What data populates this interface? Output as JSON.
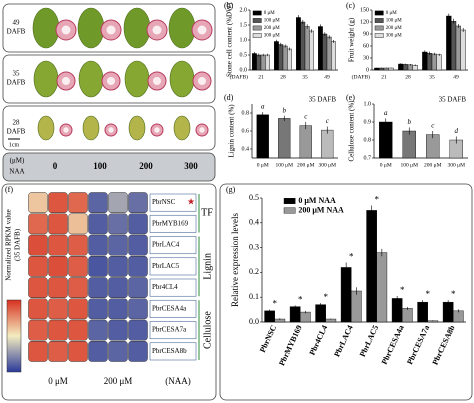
{
  "photo_panel": {
    "label": "(a)",
    "rows": [
      {
        "dafb": "49",
        "unit": "DAFB"
      },
      {
        "dafb": "35",
        "unit": "DAFB"
      },
      {
        "dafb": "28",
        "unit": "DAFB"
      }
    ],
    "scale": "1cm",
    "naa_unit": "(μM)",
    "naa_label": "NAA",
    "concentrations": [
      0,
      100,
      200,
      300
    ]
  },
  "chart_data": [
    {
      "type": "bar",
      "panel_label": "(b)",
      "y_label": "Stone cell content (%DW)",
      "x_label": "(DAFB)",
      "categories": [
        "21",
        "28",
        "35",
        "49"
      ],
      "series": [
        {
          "name": "0 μM",
          "color": "#000000",
          "values": [
            0.55,
            0.95,
            1.75,
            1.45
          ],
          "errors": [
            0.05,
            0.06,
            0.08,
            0.07
          ]
        },
        {
          "name": "100 μM",
          "color": "#555555",
          "values": [
            0.5,
            0.85,
            1.6,
            1.2
          ],
          "errors": [
            0.05,
            0.06,
            0.07,
            0.06
          ]
        },
        {
          "name": "200 μM",
          "color": "#999999",
          "values": [
            0.5,
            0.8,
            1.45,
            1.1
          ],
          "errors": [
            0.04,
            0.05,
            0.07,
            0.06
          ]
        },
        {
          "name": "300 μM",
          "color": "#dddddd",
          "values": [
            0.5,
            0.7,
            1.3,
            0.95
          ],
          "errors": [
            0.04,
            0.05,
            0.06,
            0.05
          ]
        }
      ],
      "ylim": [
        0,
        2
      ],
      "yticks": [
        {
          "value": 0,
          "label": "0.0"
        },
        0.5,
        {
          "value": 1,
          "label": "1.0"
        },
        1.5,
        {
          "value": 2,
          "label": "2.0"
        }
      ],
      "legend": "upper left"
    },
    {
      "type": "bar",
      "panel_label": "(c)",
      "y_label": "Fruit weight (g)",
      "x_label": "(DAFB)",
      "categories": [
        "21",
        "28",
        "35",
        "49"
      ],
      "series": [
        {
          "name": "0 μM",
          "color": "#000000",
          "values": [
            5,
            15,
            45,
            135
          ],
          "errors": [
            1,
            2,
            4,
            6
          ]
        },
        {
          "name": "100 μM",
          "color": "#555555",
          "values": [
            5,
            14,
            42,
            122
          ],
          "errors": [
            1,
            2,
            4,
            6
          ]
        },
        {
          "name": "200 μM",
          "color": "#999999",
          "values": [
            5,
            13,
            40,
            110
          ],
          "errors": [
            1,
            2,
            3,
            5
          ]
        },
        {
          "name": "300 μM",
          "color": "#dddddd",
          "values": [
            5,
            12,
            38,
            100
          ],
          "errors": [
            1,
            2,
            3,
            5
          ]
        }
      ],
      "ylim": [
        0,
        150
      ],
      "yticks": [
        0,
        30,
        60,
        90,
        120,
        150
      ],
      "legend": "upper left"
    },
    {
      "type": "bar",
      "panel_label": "(d)",
      "title": "35 DAFB",
      "y_label": "Lignin content (%)",
      "categories": [
        "0 μM",
        "100 μM",
        "200 μM",
        "300 μM"
      ],
      "values": [
        0.78,
        0.74,
        0.66,
        0.61
      ],
      "errors": [
        0.03,
        0.03,
        0.04,
        0.04
      ],
      "colors": [
        "#000000",
        "#777777",
        "#999999",
        "#bbbbbb"
      ],
      "letters": [
        "a",
        "b",
        "c",
        "c"
      ],
      "ylim": [
        0.3,
        0.9
      ],
      "yticks": [
        0.4,
        0.6,
        0.8
      ]
    },
    {
      "type": "bar",
      "panel_label": "(e)",
      "title": "35 DAFB",
      "y_label": "Cellulose content (%)",
      "categories": [
        "0 μM",
        "100 μM",
        "200 μM",
        "300 μM"
      ],
      "values": [
        0.9,
        0.85,
        0.83,
        0.8
      ],
      "errors": [
        0.02,
        0.02,
        0.02,
        0.02
      ],
      "colors": [
        "#000000",
        "#777777",
        "#999999",
        "#bbbbbb"
      ],
      "letters": [
        "a",
        "b",
        "c",
        "d"
      ],
      "ylim": [
        0.7,
        1
      ],
      "yticks": [
        0.7,
        0.8,
        0.9,
        {
          "value": 1,
          "label": "1.0"
        }
      ]
    },
    {
      "type": "heatmap",
      "panel_label": "(f)",
      "rows": [
        "PbrNSC",
        "PbrMYB169",
        "PbrLAC4",
        "PbrLAC5",
        "Pbr4CL4",
        "PbrCESA4a",
        "PbrCESA7a",
        "PbrCESA8b"
      ],
      "values": [
        [
          0.6,
          0.9,
          0.85,
          0.12,
          0.3,
          0.15
        ],
        [
          0.85,
          0.9,
          0.62,
          0.1,
          0.15,
          0.1
        ],
        [
          0.92,
          0.9,
          0.88,
          0.1,
          0.12,
          0.1
        ],
        [
          0.9,
          0.92,
          0.88,
          0.08,
          0.1,
          0.1
        ],
        [
          0.9,
          0.9,
          0.88,
          0.1,
          0.1,
          0.12
        ],
        [
          0.9,
          0.88,
          0.9,
          0.1,
          0.1,
          0.12
        ],
        [
          0.88,
          0.9,
          0.9,
          0.12,
          0.1,
          0.1
        ],
        [
          0.9,
          0.88,
          0.9,
          0.1,
          0.12,
          0.1
        ]
      ],
      "row_groups": [
        "TF",
        "Lignin",
        "Cellulose"
      ],
      "column_groups": [
        "0 μM",
        "200 μM"
      ],
      "x_label": "(NAA)",
      "colorbar_label": [
        "Normalized RPKM value",
        "(35 DAFB)"
      ],
      "colors": [
        "#2b3a9a",
        "#f3ecc0",
        "#d7301f"
      ]
    },
    {
      "type": "bar",
      "panel_label": "(g)",
      "y_label": "Relative expression levels",
      "categories": [
        "PbrNSC",
        "PbrMYB169",
        "Pbr4CL4",
        "PbrLAC4",
        "PbrLAC5",
        "PbrCESA4a",
        "PbrCESA7a",
        "PbrCESA8b"
      ],
      "series": [
        {
          "name": "0 μM NAA",
          "color": "#000000",
          "values": [
            0.045,
            0.062,
            0.07,
            0.22,
            0.45,
            0.095,
            0.08,
            0.08
          ],
          "errors": [
            0.005,
            0.005,
            0.006,
            0.02,
            0.02,
            0.01,
            0.008,
            0.008
          ]
        },
        {
          "name": "200 μM NAA",
          "color": "#999999",
          "values": [
            0.012,
            0.04,
            0.012,
            0.125,
            0.28,
            0.055,
            0.005,
            0.045
          ],
          "errors": [
            0.003,
            0.005,
            0.002,
            0.015,
            0.015,
            0.006,
            0.002,
            0.006
          ]
        }
      ],
      "annotations": [
        "*",
        "*",
        "*",
        "*",
        "*",
        "*",
        "*",
        "*"
      ],
      "ylim": [
        0,
        0.5
      ],
      "yticks": [
        {
          "value": 0,
          "label": "0.0"
        },
        0.1,
        0.2,
        0.3,
        0.4,
        0.5
      ],
      "legend": "upper left"
    }
  ]
}
